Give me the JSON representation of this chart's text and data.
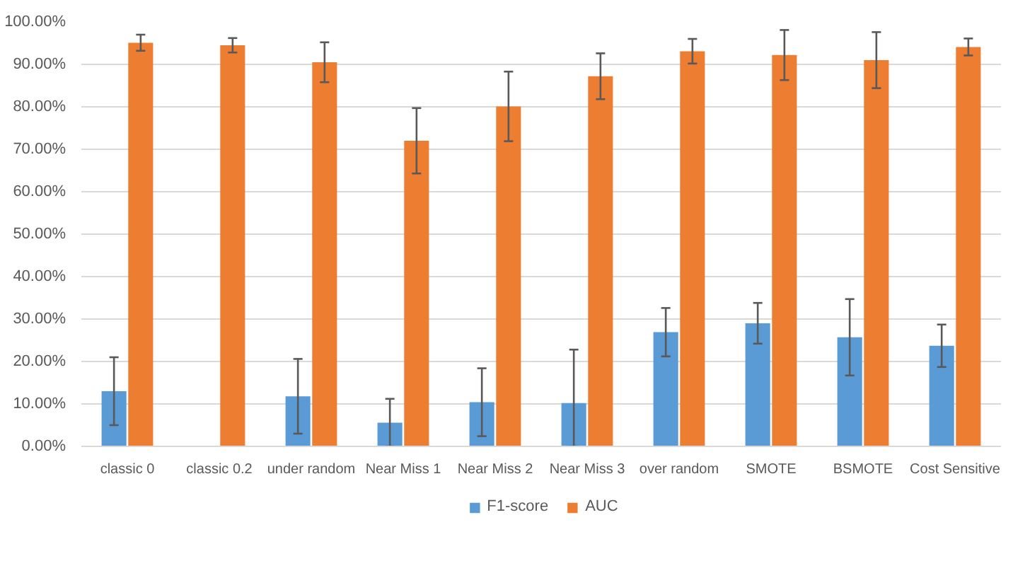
{
  "chart_data": {
    "type": "bar",
    "categories": [
      "classic 0",
      "classic 0.2",
      "under random",
      "Near Miss 1",
      "Near Miss 2",
      "Near Miss 3",
      "over random",
      "SMOTE",
      "BSMOTE",
      "Cost Sensitive"
    ],
    "series": [
      {
        "name": "F1-score",
        "color": "#5b9bd5",
        "values": [
          13.0,
          null,
          11.8,
          5.6,
          10.4,
          10.2,
          26.9,
          29.0,
          25.7,
          23.7
        ],
        "errors": [
          8.0,
          null,
          8.8,
          5.6,
          8.0,
          [
            0,
            22.8
          ],
          5.7,
          4.8,
          9.0,
          5.0
        ]
      },
      {
        "name": "AUC",
        "color": "#ed7d31",
        "values": [
          95.1,
          94.5,
          90.5,
          72.0,
          80.1,
          87.2,
          93.1,
          92.2,
          91.0,
          94.1
        ],
        "errors": [
          1.9,
          1.7,
          4.7,
          7.7,
          8.2,
          5.4,
          2.9,
          5.9,
          6.6,
          2.0
        ]
      }
    ],
    "ylim": [
      0,
      100
    ],
    "yticks": [
      {
        "value": 0,
        "label": "0.00%"
      },
      {
        "value": 10,
        "label": "10.00%"
      },
      {
        "value": 20,
        "label": "20.00%"
      },
      {
        "value": 30,
        "label": "30.00%"
      },
      {
        "value": 40,
        "label": "40.00%"
      },
      {
        "value": 50,
        "label": "50.00%"
      },
      {
        "value": 60,
        "label": "60.00%"
      },
      {
        "value": 70,
        "label": "70.00%"
      },
      {
        "value": 80,
        "label": "80.00%"
      },
      {
        "value": 90,
        "label": "90.00%"
      },
      {
        "value": 100,
        "label": "100.00%"
      }
    ],
    "grid": "y",
    "legend": "bottom"
  }
}
